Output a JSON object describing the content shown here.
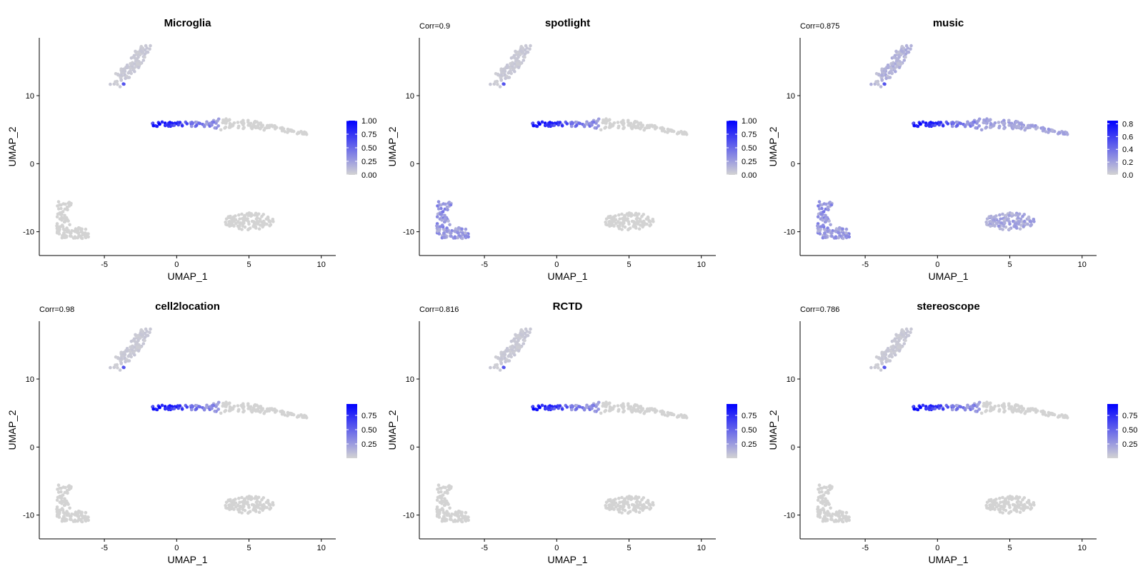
{
  "chart_data": {
    "type": "scatter",
    "layout": "2x3 grid",
    "xlabel": "UMAP_1",
    "ylabel": "UMAP_2",
    "xlim": [
      -9.5,
      11
    ],
    "ylim": [
      -13.5,
      18.5
    ],
    "xticks": [
      -5,
      0,
      5,
      10
    ],
    "yticks": [
      -10,
      0,
      10
    ],
    "xtick_labels": [
      "-5",
      "0",
      "5",
      "10"
    ],
    "ytick_labels": [
      "-10",
      "0",
      "10"
    ],
    "color_low": "#d3d3d3",
    "color_high": "#0000ff",
    "clusters": [
      {
        "name": "top-left",
        "cx": -3.8,
        "cy": 13.5,
        "dx": 1.0,
        "dy": 2.5
      },
      {
        "name": "middle-band",
        "cx": 3.0,
        "cy": 5.8,
        "dx": 6.0,
        "dy": 0.7
      },
      {
        "name": "bottom-left",
        "cx": -7.2,
        "cy": -8.5,
        "dx": 1.2,
        "dy": 2.3
      },
      {
        "name": "bottom-right",
        "cx": 5.0,
        "cy": -8.5,
        "dx": 1.7,
        "dy": 1.3
      }
    ],
    "panels": [
      {
        "title": "Microglia",
        "corr": "",
        "legend_max": 1.0,
        "legend_ticks": [
          "1.00",
          "0.75",
          "0.50",
          "0.25",
          "0.00"
        ],
        "signal": {
          "hotspot_x": -1.0,
          "band_low": 0.0,
          "cluster_levels": [
            0.05,
            0.0,
            0.0,
            0.0
          ]
        }
      },
      {
        "title": "spotlight",
        "corr": "Corr=0.9",
        "legend_max": 1.0,
        "legend_ticks": [
          "1.00",
          "0.75",
          "0.50",
          "0.25",
          "0.00"
        ],
        "signal": {
          "hotspot_x": -1.0,
          "band_low": 0.0,
          "cluster_levels": [
            0.05,
            0.0,
            0.3,
            0.0
          ]
        }
      },
      {
        "title": "music",
        "corr": "Corr=0.875",
        "legend_max": 0.85,
        "legend_ticks": [
          "0.8",
          "0.6",
          "0.4",
          "0.2",
          "0.0"
        ],
        "signal": {
          "hotspot_x": -1.0,
          "band_low": 0.25,
          "cluster_levels": [
            0.15,
            0.25,
            0.3,
            0.2
          ]
        }
      },
      {
        "title": "cell2location",
        "corr": "Corr=0.98",
        "legend_max": 0.95,
        "legend_ticks": [
          "0.75",
          "0.50",
          "0.25"
        ],
        "signal": {
          "hotspot_x": -1.0,
          "band_low": 0.0,
          "cluster_levels": [
            0.05,
            0.0,
            0.0,
            0.0
          ]
        }
      },
      {
        "title": "RCTD",
        "corr": "Corr=0.816",
        "legend_max": 0.95,
        "legend_ticks": [
          "0.75",
          "0.50",
          "0.25"
        ],
        "signal": {
          "hotspot_x": -1.2,
          "band_low": 0.0,
          "cluster_levels": [
            0.05,
            0.0,
            0.0,
            0.0
          ]
        }
      },
      {
        "title": "stereoscope",
        "corr": "Corr=0.786",
        "legend_max": 0.95,
        "legend_ticks": [
          "0.75",
          "0.50",
          "0.25"
        ],
        "signal": {
          "hotspot_x": -1.2,
          "band_low": 0.0,
          "cluster_levels": [
            0.05,
            0.0,
            0.0,
            0.0
          ]
        }
      }
    ]
  }
}
